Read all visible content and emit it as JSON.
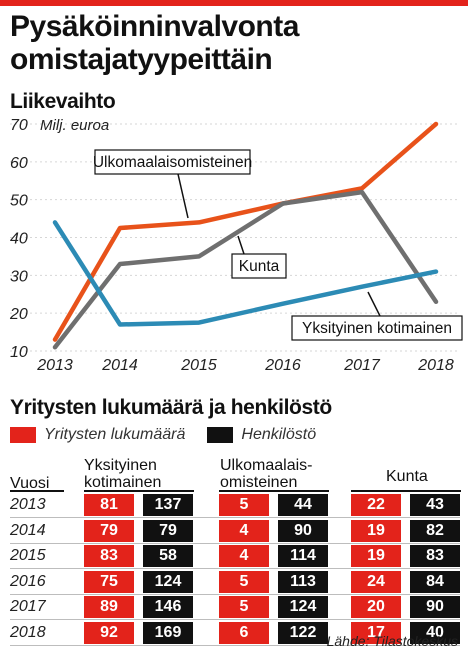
{
  "title": {
    "line1": "Pysäköinninvalvonta",
    "line2": "omistajatyypeittäin"
  },
  "line_chart": {
    "heading": "Liikevaihto",
    "unit": "Milj. euroa",
    "colors": {
      "ulkomaalais": "#e8521a",
      "kunta": "#6f6f6f",
      "yksityinen": "#2c8bb5"
    }
  },
  "chart_data": {
    "type": "line",
    "title": "Liikevaihto",
    "ylabel": "Milj. euroa",
    "xlabel": "",
    "x": [
      2013,
      2014,
      2015,
      2016,
      2017,
      2018
    ],
    "ylim": [
      10,
      70
    ],
    "yticks": [
      10,
      20,
      30,
      40,
      50,
      60,
      70
    ],
    "series": [
      {
        "name": "Ulkomaalaisomisteinen",
        "key": "ulkomaalais",
        "values": [
          13,
          42.5,
          44,
          49,
          53,
          70
        ]
      },
      {
        "name": "Kunta",
        "key": "kunta",
        "values": [
          11,
          33,
          35,
          49,
          52,
          23
        ]
      },
      {
        "name": "Yksityinen kotimainen",
        "key": "yksityinen",
        "values": [
          44,
          17,
          17.5,
          22.5,
          27,
          31
        ]
      }
    ]
  },
  "table": {
    "heading": "Yritysten lukumäärä ja henkilöstö",
    "legend": {
      "red_label": "Yritysten lukumäärä",
      "black_label": "Henkilöstö",
      "red_color": "#e3231b",
      "black_color": "#111111"
    },
    "year_header": "Vuosi",
    "groups": [
      {
        "line1": "Yksityinen",
        "line2": "kotimainen"
      },
      {
        "line1": "Ulkomaalais-",
        "line2": "omisteinen"
      },
      {
        "line1": "Kunta",
        "line2": ""
      }
    ],
    "rows": [
      {
        "year": "2013",
        "values": [
          "81",
          "137",
          "5",
          "44",
          "22",
          "43"
        ]
      },
      {
        "year": "2014",
        "values": [
          "79",
          "79",
          "4",
          "90",
          "19",
          "82"
        ]
      },
      {
        "year": "2015",
        "values": [
          "83",
          "58",
          "4",
          "114",
          "19",
          "83"
        ]
      },
      {
        "year": "2016",
        "values": [
          "75",
          "124",
          "5",
          "113",
          "24",
          "84"
        ]
      },
      {
        "year": "2017",
        "values": [
          "89",
          "146",
          "5",
          "124",
          "20",
          "90"
        ]
      },
      {
        "year": "2018",
        "values": [
          "92",
          "169",
          "6",
          "122",
          "17",
          "40"
        ]
      }
    ]
  },
  "source": "Lähde: Tilastokeskus"
}
